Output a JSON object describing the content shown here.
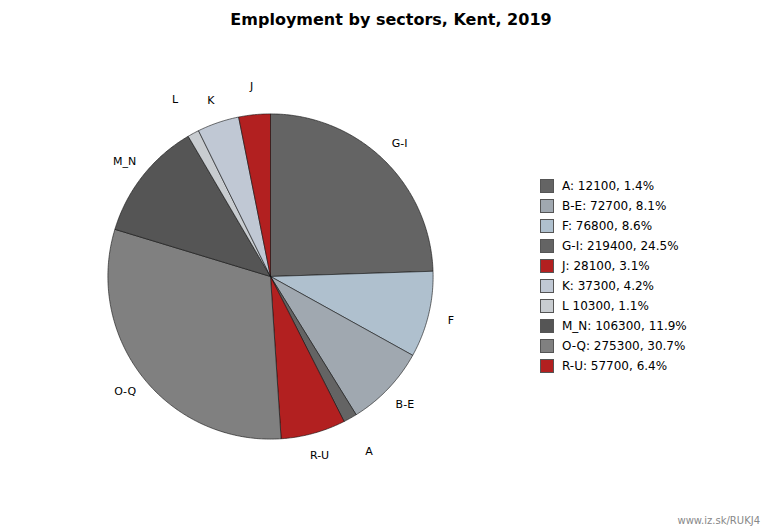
{
  "chart_data": {
    "type": "pie",
    "title": "Employment by sectors, Kent, 2019",
    "categories": [
      "G-I",
      "F",
      "B-E",
      "A",
      "R-U",
      "O-Q",
      "M_N",
      "L",
      "K",
      "J"
    ],
    "values": [
      219400,
      76800,
      72700,
      12100,
      57700,
      275300,
      106300,
      10300,
      37300,
      28100
    ],
    "colors": [
      "#646464",
      "#afc0ce",
      "#a0a8b0",
      "#646464",
      "#b22020",
      "#808080",
      "#555555",
      "#c8ccd0",
      "#c0c8d4",
      "#b22020"
    ],
    "legend": "right",
    "legend_entries": [
      {
        "label": "A: 12100, 1.4%",
        "color": "#646464"
      },
      {
        "label": "B-E: 72700, 8.1%",
        "color": "#a0a8b0"
      },
      {
        "label": "F: 76800, 8.6%",
        "color": "#afc0ce"
      },
      {
        "label": "G-I: 219400, 24.5%",
        "color": "#646464"
      },
      {
        "label": "J: 28100, 3.1%",
        "color": "#b22020"
      },
      {
        "label": "K: 37300, 4.2%",
        "color": "#c0c8d4"
      },
      {
        "label": "L 10300, 1.1%",
        "color": "#c8ccd0"
      },
      {
        "label": "M_N: 106300, 11.9%",
        "color": "#555555"
      },
      {
        "label": "O-Q: 275300, 30.7%",
        "color": "#808080"
      },
      {
        "label": "R-U: 57700, 6.4%",
        "color": "#b22020"
      }
    ],
    "annotations": [
      "www.iz.sk/RUKJ4"
    ]
  }
}
